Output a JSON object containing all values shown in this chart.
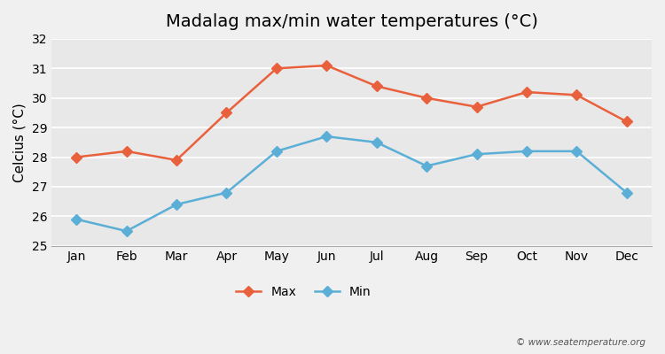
{
  "title": "Madalag max/min water temperatures (°C)",
  "ylabel": "Celcius (°C)",
  "months": [
    "Jan",
    "Feb",
    "Mar",
    "Apr",
    "May",
    "Jun",
    "Jul",
    "Aug",
    "Sep",
    "Oct",
    "Nov",
    "Dec"
  ],
  "max_temps": [
    28.0,
    28.2,
    27.9,
    29.5,
    31.0,
    31.1,
    30.4,
    30.0,
    29.7,
    30.2,
    30.1,
    29.2
  ],
  "min_temps": [
    25.9,
    25.5,
    26.4,
    26.8,
    28.2,
    28.7,
    28.5,
    27.7,
    28.1,
    28.2,
    28.2,
    26.8
  ],
  "max_color": "#e8613c",
  "min_color": "#5bafd6",
  "bg_color": "#f0f0f0",
  "plot_bg_color": "#e8e8e8",
  "ylim": [
    25,
    32
  ],
  "yticks": [
    25,
    26,
    27,
    28,
    29,
    30,
    31,
    32
  ],
  "legend_labels": [
    "Max",
    "Min"
  ],
  "watermark": "© www.seatemperature.org",
  "title_fontsize": 14,
  "axis_label_fontsize": 11,
  "tick_fontsize": 10
}
